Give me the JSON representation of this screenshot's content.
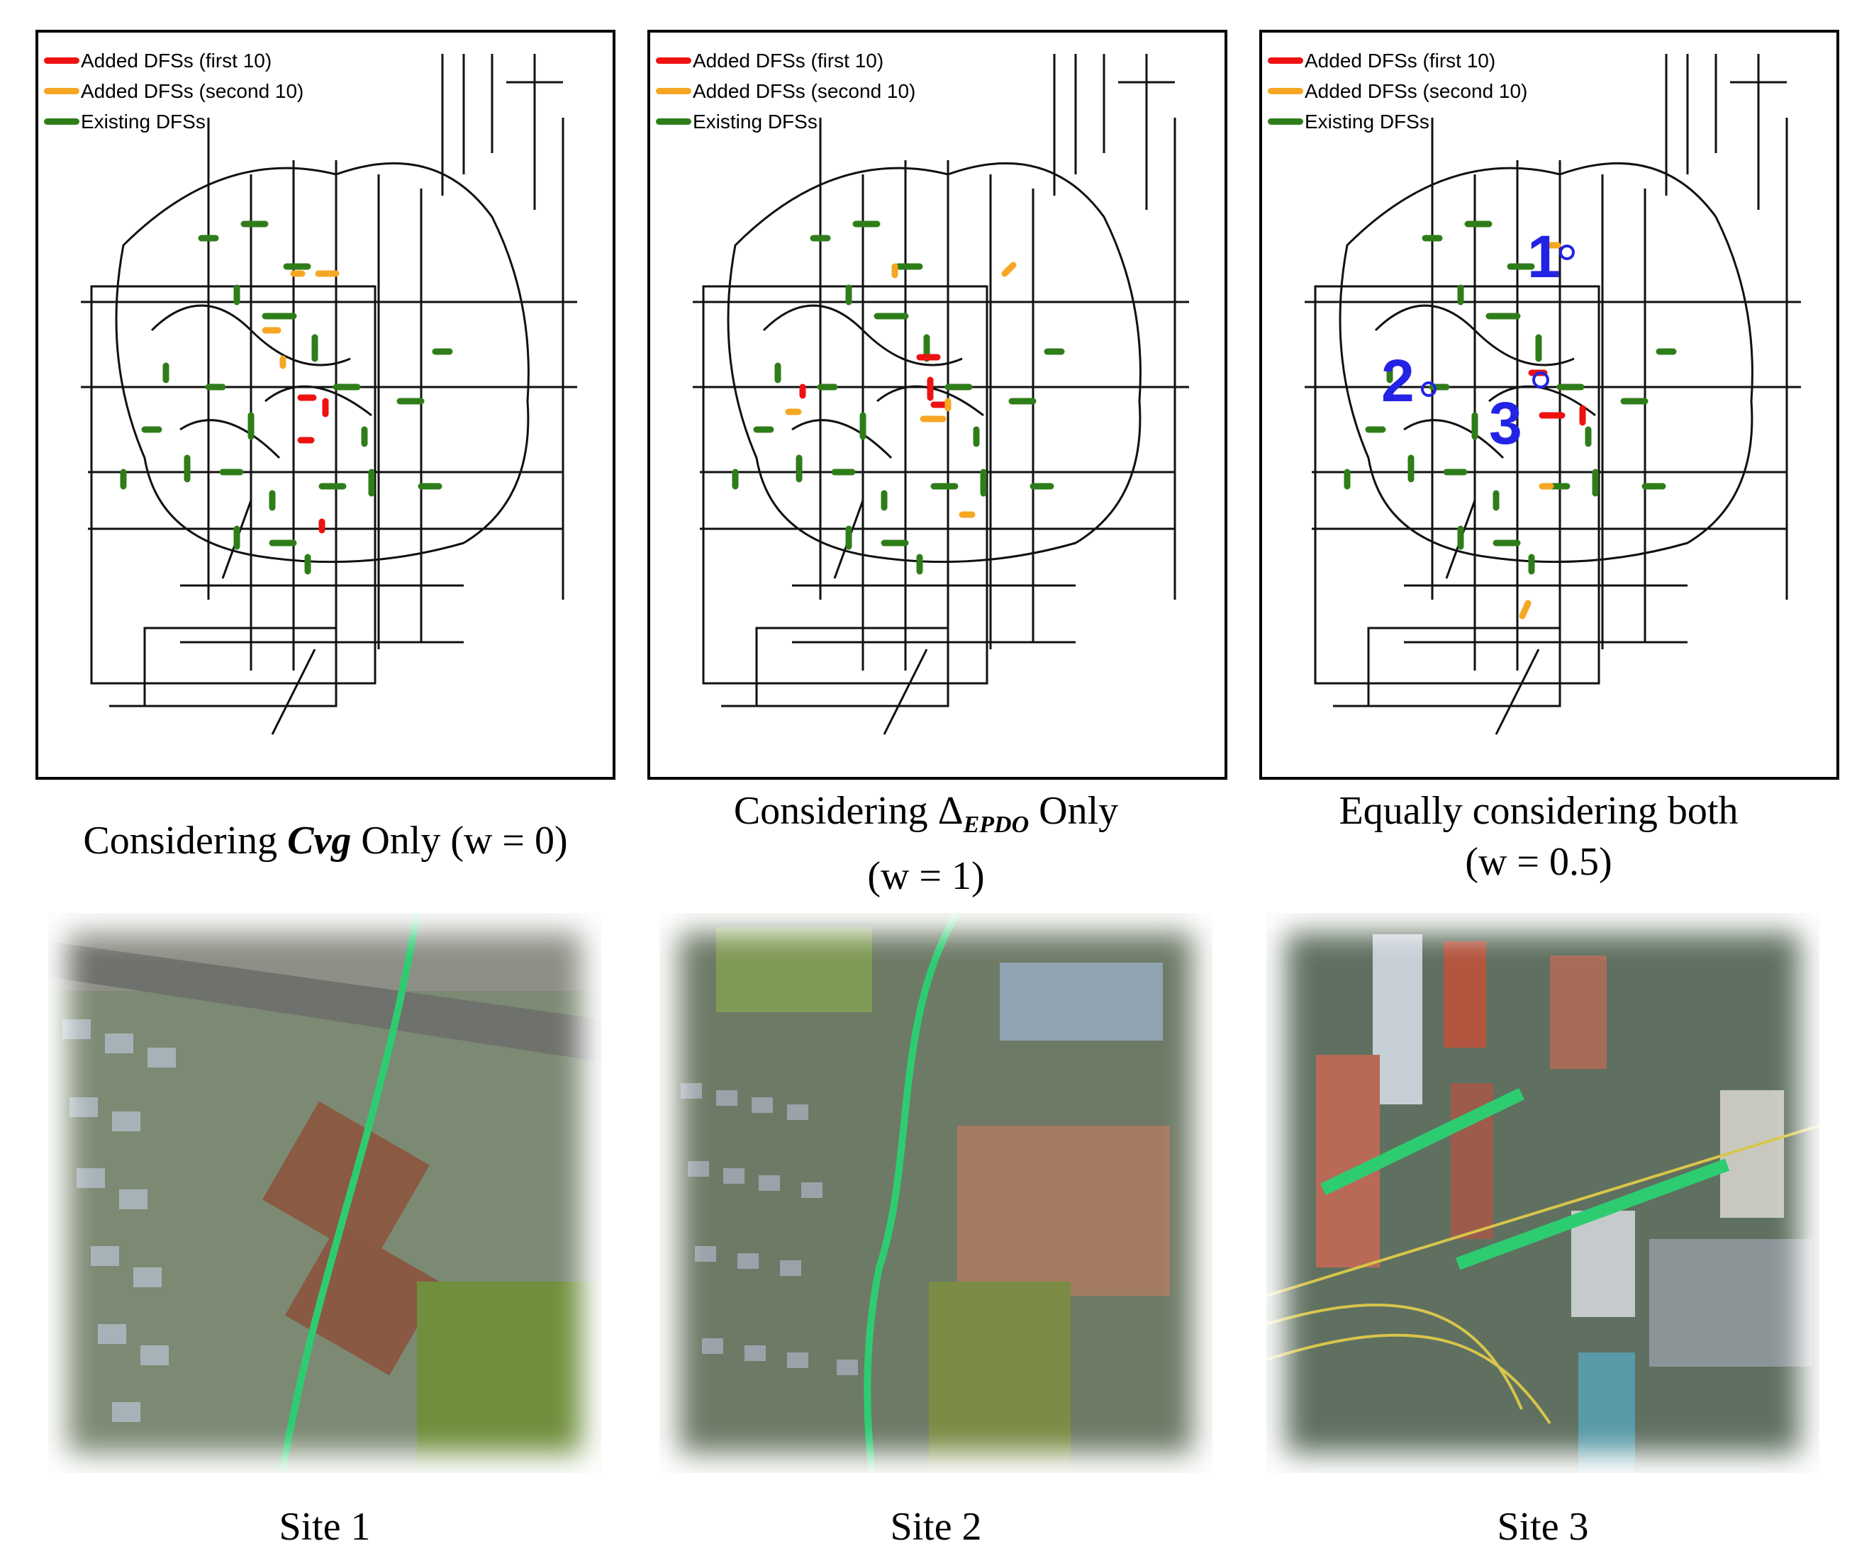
{
  "legend": {
    "first": {
      "label": "Added DFSs (first 10)",
      "color": "#ee1111"
    },
    "second": {
      "label": "Added DFSs (second 10)",
      "color": "#f5a623"
    },
    "existing": {
      "label": "Existing DFSs",
      "color": "#2f7d1a"
    }
  },
  "captions": {
    "map1": {
      "prefix": "Considering ",
      "math": "Cvg",
      "suffix": " Only (w = 0)"
    },
    "map2": {
      "prefix": "Considering Δ",
      "sub": "EPDO",
      "suffix": " Only",
      "line2": "(w = 1)"
    },
    "map3": {
      "line1": "Equally considering both",
      "line2": "(w = 0.5)"
    }
  },
  "site_markers": [
    "1",
    "2",
    "3"
  ],
  "site_labels": [
    "Site 1",
    "Site 2",
    "Site 3"
  ],
  "colors": {
    "road": "#111111",
    "highlight_route": "#2ecc71",
    "frame": "#000000"
  }
}
